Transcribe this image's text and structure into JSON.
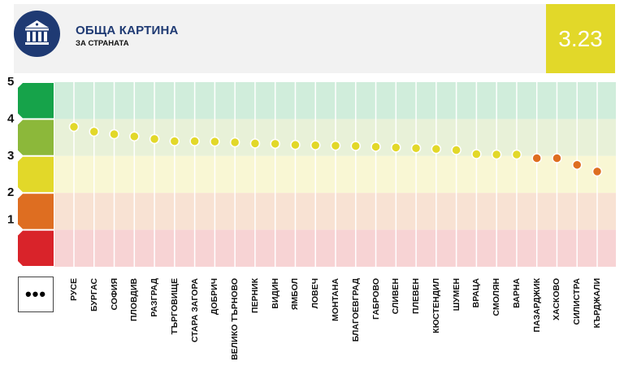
{
  "header": {
    "title": "ОБЩА КАРТИНА",
    "subtitle": "ЗА СТРАНАТА",
    "score": "3.23",
    "icon": "government-building-icon"
  },
  "more_button": {
    "label": "•••",
    "icon": "more-dots-icon"
  },
  "colors": {
    "brand": "#1f3a73",
    "score_bg": "#e2d829",
    "band5": "#16a34a",
    "band4": "#8cb83a",
    "band3": "#e2d829",
    "band2": "#de6e21",
    "band1": "#d9232a",
    "dot_yellow": "#e2d829",
    "dot_orange": "#de6e21"
  },
  "chart_data": {
    "type": "scatter",
    "title": "ОБЩА КАРТИНА ЗА СТРАНАТА",
    "xlabel": "",
    "ylabel": "",
    "ylim": [
      0,
      5
    ],
    "yticks": [
      "1",
      "2",
      "3",
      "4",
      "5"
    ],
    "grid": true,
    "legend": "none",
    "categories": [
      "РУСЕ",
      "БУРГАС",
      "СОФИЯ",
      "ПЛОВДИВ",
      "РАЗГРАД",
      "ТЪРГОВИЩЕ",
      "СТАРА ЗАГОРА",
      "ДОБРИЧ",
      "ВЕЛИКО ТЪРНОВО",
      "ПЕРНИК",
      "ВИДИН",
      "ЯМБОЛ",
      "ЛОВЕЧ",
      "МОНТАНА",
      "БЛАГОЕВГРАД",
      "ГАБРОВО",
      "СЛИВЕН",
      "ПЛЕВЕН",
      "КЮСТЕНДИЛ",
      "ШУМЕН",
      "ВРАЦА",
      "СМОЛЯН",
      "ВАРНА",
      "ПАЗАРДЖИК",
      "ХАСКОВО",
      "СИЛИСТРА",
      "КЪРДЖАЛИ"
    ],
    "values": [
      3.79,
      3.66,
      3.59,
      3.53,
      3.46,
      3.4,
      3.4,
      3.39,
      3.37,
      3.34,
      3.33,
      3.3,
      3.29,
      3.28,
      3.27,
      3.25,
      3.23,
      3.21,
      3.19,
      3.16,
      3.05,
      3.04,
      3.04,
      2.94,
      2.94,
      2.76,
      2.58
    ],
    "bands": [
      {
        "from": 4,
        "to": 5,
        "color": "#16a34a"
      },
      {
        "from": 3,
        "to": 4,
        "color": "#8cb83a"
      },
      {
        "from": 2,
        "to": 3,
        "color": "#e2d829"
      },
      {
        "from": 1,
        "to": 2,
        "color": "#de6e21"
      },
      {
        "from": 0,
        "to": 1,
        "color": "#d9232a"
      }
    ]
  }
}
